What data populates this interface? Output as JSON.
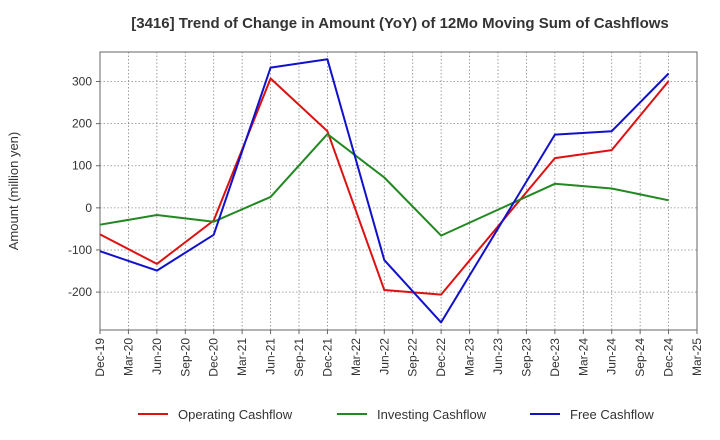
{
  "chart_data": {
    "type": "line",
    "title": "[3416]  Trend of Change in Amount (YoY) of 12Mo Moving Sum of Cashflows",
    "xlabel": "",
    "ylabel": "Amount (million yen)",
    "ylim": [
      -290,
      370
    ],
    "yticks": [
      -200,
      -100,
      0,
      100,
      200,
      300
    ],
    "categories": [
      "Dec-19",
      "Mar-20",
      "Jun-20",
      "Sep-20",
      "Dec-20",
      "Mar-21",
      "Jun-21",
      "Sep-21",
      "Dec-21",
      "Mar-22",
      "Jun-22",
      "Sep-22",
      "Dec-22",
      "Mar-23",
      "Jun-23",
      "Sep-23",
      "Dec-23",
      "Mar-24",
      "Jun-24",
      "Sep-24",
      "Dec-24",
      "Mar-25"
    ],
    "series": [
      {
        "name": "Operating Cashflow",
        "color": "#dd1111",
        "values": [
          -63,
          null,
          -133,
          null,
          -30,
          null,
          307,
          null,
          182,
          null,
          -195,
          null,
          -206,
          null,
          null,
          null,
          118,
          null,
          137,
          null,
          301,
          null
        ]
      },
      {
        "name": "Investing Cashflow",
        "color": "#228822",
        "values": [
          -40,
          null,
          -17,
          null,
          -33,
          null,
          26,
          null,
          175,
          null,
          72,
          null,
          -66,
          null,
          null,
          null,
          57,
          null,
          46,
          null,
          18,
          null
        ]
      },
      {
        "name": "Free Cashflow",
        "color": "#1111cc",
        "values": [
          -103,
          null,
          -149,
          null,
          -64,
          null,
          333,
          null,
          353,
          null,
          -124,
          null,
          -272,
          null,
          null,
          null,
          174,
          null,
          182,
          null,
          319,
          null
        ]
      }
    ],
    "grid": true,
    "legend": "bottom"
  }
}
